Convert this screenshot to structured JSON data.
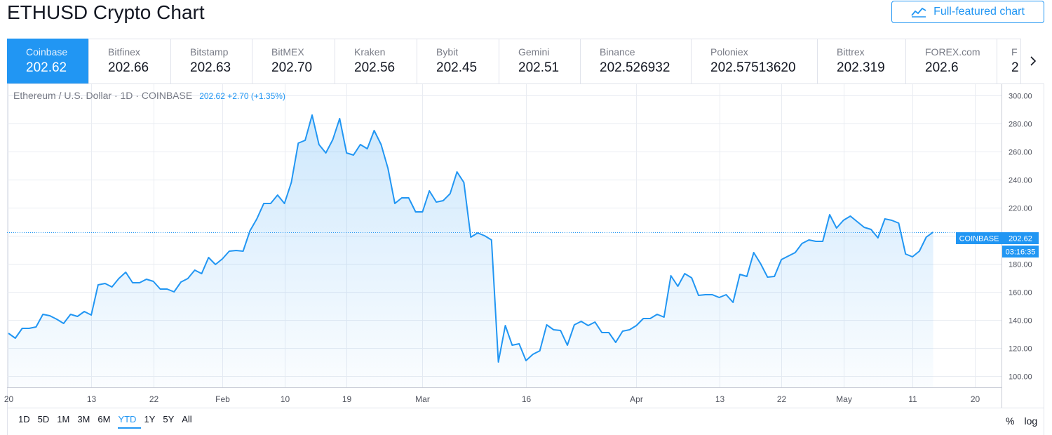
{
  "page": {
    "title": "ETHUSD Crypto Chart",
    "full_featured_label": "Full-featured chart"
  },
  "tabs": [
    {
      "exchange": "Coinbase",
      "price": "202.62",
      "active": true
    },
    {
      "exchange": "Bitfinex",
      "price": "202.66"
    },
    {
      "exchange": "Bitstamp",
      "price": "202.63"
    },
    {
      "exchange": "BitMEX",
      "price": "202.70"
    },
    {
      "exchange": "Kraken",
      "price": "202.56"
    },
    {
      "exchange": "Bybit",
      "price": "202.45"
    },
    {
      "exchange": "Gemini",
      "price": "202.51"
    },
    {
      "exchange": "Binance",
      "price": "202.526932"
    },
    {
      "exchange": "Poloniex",
      "price": "202.57513620"
    },
    {
      "exchange": "Bittrex",
      "price": "202.319"
    },
    {
      "exchange": "FOREX.com",
      "price": "202.6"
    },
    {
      "exchange": "F",
      "price": "2"
    }
  ],
  "legend": {
    "symbol": "Ethereum / U.S. Dollar · 1D · COINBASE",
    "values": "202.62 +2.70 (+1.35%)"
  },
  "price_label": {
    "name": "COINBASE",
    "value": "202.62",
    "countdown": "03:16:35"
  },
  "ranges": [
    {
      "label": "1D"
    },
    {
      "label": "5D"
    },
    {
      "label": "1M"
    },
    {
      "label": "3M"
    },
    {
      "label": "6M"
    },
    {
      "label": "YTD",
      "selected": true
    },
    {
      "label": "1Y"
    },
    {
      "label": "5Y"
    },
    {
      "label": "All"
    }
  ],
  "scale_options": {
    "percent": "%",
    "log": "log"
  },
  "colors": {
    "accent": "#2196f3",
    "grid": "#e9ecf2",
    "text_muted": "#787b86"
  },
  "chart_data": {
    "type": "area",
    "y_ticks": [
      100,
      120,
      140,
      160,
      180,
      200,
      220,
      240,
      260,
      280,
      300
    ],
    "y_tick_labels": [
      "100.00",
      "120.00",
      "140.00",
      "160.00",
      "180.00",
      "200.00",
      "220.00",
      "240.00",
      "260.00",
      "280.00",
      "300.00"
    ],
    "ylim": [
      92,
      308
    ],
    "x_ticks": [
      {
        "label": "20",
        "x": 1
      },
      {
        "label": "13",
        "x": 13
      },
      {
        "label": "22",
        "x": 22
      },
      {
        "label": "Feb",
        "x": 32
      },
      {
        "label": "10",
        "x": 41
      },
      {
        "label": "19",
        "x": 50
      },
      {
        "label": "Mar",
        "x": 61
      },
      {
        "label": "16",
        "x": 76
      },
      {
        "label": "Apr",
        "x": 92
      },
      {
        "label": "13",
        "x": 104
      },
      {
        "label": "22",
        "x": 113
      },
      {
        "label": "May",
        "x": 122
      },
      {
        "label": "11",
        "x": 132
      },
      {
        "label": "20",
        "x": 141
      }
    ],
    "xlim": [
      1,
      146
    ],
    "last_value": 202.62,
    "series": [
      {
        "values": [
          130.5,
          127.0,
          134.0,
          134.0,
          135.0,
          144.0,
          143.0,
          140.5,
          137.5,
          144.0,
          142.5,
          146.0,
          143.5,
          165.0,
          166.0,
          163.5,
          169.5,
          174.0,
          166.5,
          166.5,
          169.0,
          167.5,
          162.0,
          162.0,
          160.0,
          167.0,
          169.5,
          175.5,
          173.0,
          184.5,
          179.5,
          183.5,
          189.0,
          189.5,
          189.0,
          203.5,
          212.0,
          223.0,
          223.0,
          229.0,
          223.0,
          238.0,
          266.0,
          268.0,
          286.0,
          265.0,
          259.0,
          268.5,
          283.5,
          259.0,
          257.5,
          265.0,
          262.0,
          275.0,
          265.0,
          248.0,
          223.0,
          227.0,
          227.0,
          217.0,
          217.0,
          232.0,
          224.0,
          225.0,
          230.0,
          245.5,
          238.0,
          199.0,
          202.0,
          200.0,
          197.0,
          110.0,
          136.0,
          122.0,
          123.0,
          111.0,
          115.5,
          118.0,
          136.5,
          133.0,
          132.5,
          122.0,
          136.5,
          139.0,
          136.0,
          138.5,
          131.0,
          131.0,
          124.0,
          132.0,
          133.0,
          136.0,
          141.0,
          141.0,
          144.0,
          142.0,
          171.5,
          164.0,
          173.0,
          170.0,
          157.5,
          158.0,
          158.0,
          156.0,
          158.0,
          152.5,
          172.5,
          171.0,
          188.0,
          180.0,
          170.5,
          171.0,
          183.0,
          185.5,
          188.0,
          194.5,
          197.0,
          196.0,
          196.0,
          215.0,
          205.5,
          211.0,
          214.0,
          210.0,
          206.0,
          204.5,
          198.5,
          212.0,
          211.0,
          209.0,
          187.0,
          185.0,
          189.0,
          199.0,
          202.62
        ]
      }
    ]
  }
}
